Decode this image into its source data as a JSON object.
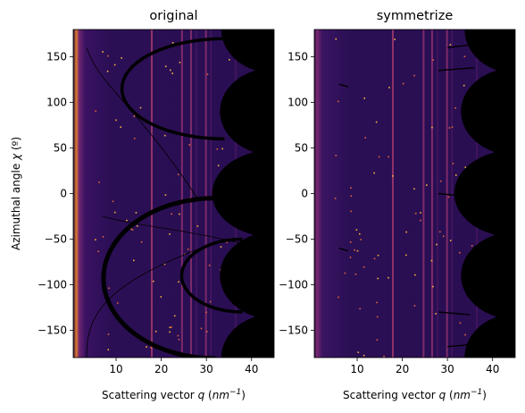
{
  "chart_data": [
    {
      "type": "heatmap",
      "title": "original",
      "xlabel": "Scattering vector q (nm⁻¹)",
      "ylabel": "Azimuthal angle χ (º)",
      "xlim": [
        0.5,
        45
      ],
      "ylim": [
        -180,
        180
      ],
      "xticks": [
        10,
        20,
        30,
        40
      ],
      "yticks": [
        150,
        100,
        50,
        0,
        -50,
        -100,
        -150
      ],
      "colormap": "inferno",
      "grid": false,
      "mask_color": "#000000",
      "masked_lobes": [
        {
          "chi": 180,
          "q_edge": 33.3
        },
        {
          "chi": 90,
          "q_edge": 33.0
        },
        {
          "chi": 0,
          "q_edge": 31.3
        },
        {
          "chi": -90,
          "q_edge": 33.0
        },
        {
          "chi": -180,
          "q_edge": 33.3
        }
      ],
      "bright_lines_q": [
        17.9,
        24.6,
        26.6,
        29.9
      ],
      "arcs": [
        {
          "q_min": 11.3,
          "q_max": 34,
          "chi_center": 115,
          "chi_span": 55
        },
        {
          "q_min": 7.2,
          "q_max": 32,
          "chi_center": -93,
          "chi_span": 88
        },
        {
          "q_min": 24.5,
          "q_max": 38,
          "chi_center": -90,
          "chi_span": 40
        }
      ]
    },
    {
      "type": "heatmap",
      "title": "symmetrize",
      "xlabel": "Scattering vector q (nm⁻¹)",
      "xlim": [
        0.5,
        45
      ],
      "ylim": [
        -180,
        180
      ],
      "xticks": [
        10,
        20,
        30,
        40
      ],
      "yticks": [
        150,
        100,
        50,
        0,
        -50,
        -100,
        -150
      ],
      "colormap": "inferno",
      "grid": false,
      "mask_color": "#000000",
      "masked_lobes": [
        {
          "chi": 180,
          "q_edge": 33.8
        },
        {
          "chi": 90,
          "q_edge": 33.0
        },
        {
          "chi": 0,
          "q_edge": 31.5
        },
        {
          "chi": -90,
          "q_edge": 33.0
        },
        {
          "chi": -180,
          "q_edge": 33.8
        }
      ],
      "bright_lines_q": [
        17.9,
        24.7,
        26.6,
        29.9
      ]
    }
  ],
  "ylabel_text": "Azimuthal angle",
  "ylabel_symbol": "χ",
  "ylabel_unit": "(º)",
  "xlabel_text": "Scattering vector",
  "xlabel_symbol": "q",
  "xlabel_unit_base": "nm",
  "xlabel_unit_exp": "−1"
}
